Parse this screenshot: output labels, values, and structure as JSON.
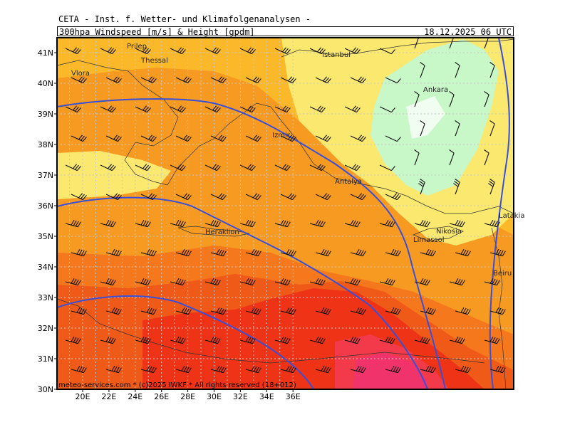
{
  "header": {
    "line1": "CETA - Inst. f. Wetter- und Klimafolgenanalysen -",
    "line2": "300hpa Windspeed [m/s] & Height [gpdm]",
    "valid_time": "18.12.2025 06 UTC"
  },
  "footer": {
    "credit": "meteo-services.com * (c)2025 IWKF * All rights reserved (18+012)"
  },
  "axes": {
    "lon_labels": [
      "20E",
      "22E",
      "24E",
      "26E",
      "28E",
      "30E",
      "32E",
      "34E",
      "36E"
    ],
    "lat_labels": [
      "41N",
      "40N",
      "39N",
      "38N",
      "37N",
      "36N",
      "35N",
      "34N",
      "33N",
      "32N",
      "31N",
      "30N"
    ]
  },
  "cities": [
    {
      "name": "Prilep"
    },
    {
      "name": "Thessal"
    },
    {
      "name": "Vlora"
    },
    {
      "name": "Istanbul"
    },
    {
      "name": "Ankara"
    },
    {
      "name": "Izmir"
    },
    {
      "name": "Antalya"
    },
    {
      "name": "Heraklion"
    },
    {
      "name": "Nikosia"
    },
    {
      "name": "Limassol"
    },
    {
      "name": "Latakia"
    },
    {
      "name": "Beiru"
    }
  ],
  "colors": {
    "wind_low": "#e4fbe4",
    "wind_mid": "#fbe86e",
    "wind_high": "#f79a22",
    "wind_jet": "#ee3317",
    "wind_max": "#f0336b",
    "height_contour": "#3a4fd8",
    "grid": "#c8c8c8",
    "borders": "#333333"
  }
}
